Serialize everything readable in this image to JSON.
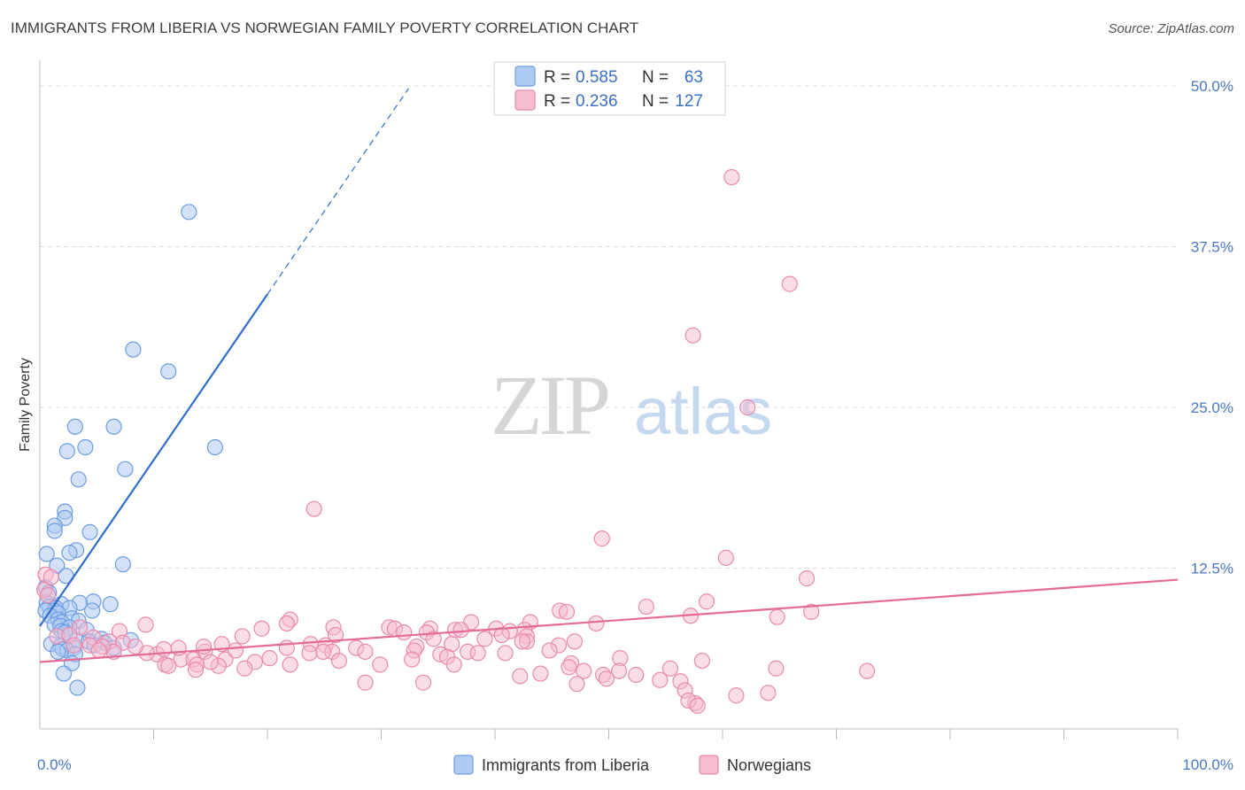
{
  "header": {
    "title": "IMMIGRANTS FROM LIBERIA VS NORWEGIAN FAMILY POVERTY CORRELATION CHART",
    "source": "Source: ZipAtlas.com"
  },
  "watermark": {
    "zip": "ZIP",
    "atlas": "atlas"
  },
  "legend": {
    "rows": [
      {
        "r_label": "R =",
        "r_value": "0.585",
        "n_label": "N =",
        "n_value": "63"
      },
      {
        "r_label": "R =",
        "r_value": "0.236",
        "n_label": "N =",
        "n_value": "127"
      }
    ]
  },
  "colors": {
    "blue_fill": "#aecbf2",
    "blue_stroke": "#6d9de0",
    "blue_line": "#2f6fc9",
    "pink_fill": "#f6bcd0",
    "pink_stroke": "#e98aae",
    "pink_line": "#e56a98",
    "grid": "#dddddd",
    "axis": "#bbbbbb"
  },
  "chart_data": {
    "type": "scatter",
    "title": "IMMIGRANTS FROM LIBERIA VS NORWEGIAN FAMILY POVERTY CORRELATION CHART",
    "xlabel": "",
    "ylabel": "Family Poverty",
    "xlim": [
      0,
      100
    ],
    "ylim": [
      0,
      52
    ],
    "x_tick_labels": [
      "0.0%",
      "100.0%"
    ],
    "y_ticks": [
      12.5,
      25.0,
      37.5,
      50.0
    ],
    "y_tick_labels": [
      "12.5%",
      "25.0%",
      "37.5%",
      "50.0%"
    ],
    "grid": true,
    "legend_position": "bottom",
    "series": [
      {
        "name": "Immigrants from Liberia",
        "r": 0.585,
        "n": 63,
        "trend": {
          "x_start": 0,
          "y_start": 8.0,
          "x_solid_end": 20,
          "x_dash_end": 32.4
        },
        "points": [
          [
            13.1,
            40.2
          ],
          [
            8.2,
            29.5
          ],
          [
            11.3,
            27.8
          ],
          [
            3.1,
            23.5
          ],
          [
            6.5,
            23.5
          ],
          [
            15.4,
            21.9
          ],
          [
            4.0,
            21.9
          ],
          [
            2.4,
            21.6
          ],
          [
            7.5,
            20.2
          ],
          [
            3.4,
            19.4
          ],
          [
            2.2,
            16.9
          ],
          [
            2.2,
            16.4
          ],
          [
            1.3,
            15.8
          ],
          [
            1.3,
            15.4
          ],
          [
            4.4,
            15.3
          ],
          [
            3.2,
            13.9
          ],
          [
            2.6,
            13.7
          ],
          [
            0.6,
            13.6
          ],
          [
            7.3,
            12.8
          ],
          [
            1.5,
            12.7
          ],
          [
            2.3,
            11.9
          ],
          [
            0.5,
            11.0
          ],
          [
            0.8,
            10.6
          ],
          [
            4.7,
            9.9
          ],
          [
            0.6,
            9.8
          ],
          [
            3.5,
            9.8
          ],
          [
            1.9,
            9.7
          ],
          [
            6.2,
            9.7
          ],
          [
            0.8,
            9.5
          ],
          [
            1.4,
            9.4
          ],
          [
            2.6,
            9.4
          ],
          [
            1.3,
            9.2
          ],
          [
            0.5,
            9.2
          ],
          [
            4.6,
            9.2
          ],
          [
            1.6,
            9.0
          ],
          [
            0.9,
            8.8
          ],
          [
            2.8,
            8.6
          ],
          [
            1.6,
            8.5
          ],
          [
            3.4,
            8.4
          ],
          [
            1.9,
            8.3
          ],
          [
            1.3,
            8.1
          ],
          [
            1.8,
            8.0
          ],
          [
            2.6,
            7.9
          ],
          [
            4.1,
            7.7
          ],
          [
            1.9,
            7.6
          ],
          [
            2.2,
            7.5
          ],
          [
            5.4,
            7.0
          ],
          [
            3.2,
            6.9
          ],
          [
            8.0,
            6.9
          ],
          [
            4.3,
            6.8
          ],
          [
            5.7,
            6.7
          ],
          [
            1.0,
            6.6
          ],
          [
            4.8,
            6.5
          ],
          [
            1.8,
            6.4
          ],
          [
            2.0,
            6.2
          ],
          [
            6.5,
            6.3
          ],
          [
            3.0,
            6.3
          ],
          [
            2.4,
            6.1
          ],
          [
            3.1,
            5.8
          ],
          [
            2.8,
            5.1
          ],
          [
            2.1,
            4.3
          ],
          [
            3.3,
            3.2
          ],
          [
            1.6,
            6.0
          ]
        ]
      },
      {
        "name": "Norwegians",
        "r": 0.236,
        "n": 127,
        "trend": {
          "x_start": 0,
          "y_start": 5.2,
          "x_end": 100,
          "y_end": 11.6
        },
        "points": [
          [
            60.8,
            42.9
          ],
          [
            65.9,
            34.6
          ],
          [
            57.4,
            30.6
          ],
          [
            62.2,
            25.0
          ],
          [
            24.1,
            17.1
          ],
          [
            49.4,
            14.8
          ],
          [
            60.3,
            13.3
          ],
          [
            0.5,
            12.0
          ],
          [
            1.0,
            11.8
          ],
          [
            67.4,
            11.7
          ],
          [
            0.4,
            10.8
          ],
          [
            0.7,
            10.4
          ],
          [
            58.6,
            9.9
          ],
          [
            53.3,
            9.5
          ],
          [
            45.7,
            9.2
          ],
          [
            46.3,
            9.1
          ],
          [
            67.8,
            9.1
          ],
          [
            57.2,
            8.8
          ],
          [
            64.8,
            8.7
          ],
          [
            22.0,
            8.5
          ],
          [
            21.7,
            8.2
          ],
          [
            43.1,
            8.3
          ],
          [
            37.9,
            8.3
          ],
          [
            48.9,
            8.2
          ],
          [
            9.3,
            8.1
          ],
          [
            25.8,
            7.9
          ],
          [
            30.7,
            7.9
          ],
          [
            34.3,
            7.8
          ],
          [
            31.2,
            7.8
          ],
          [
            19.5,
            7.8
          ],
          [
            40.1,
            7.8
          ],
          [
            42.6,
            7.7
          ],
          [
            36.5,
            7.7
          ],
          [
            37.0,
            7.7
          ],
          [
            41.3,
            7.6
          ],
          [
            7.0,
            7.6
          ],
          [
            34.0,
            7.5
          ],
          [
            32.0,
            7.5
          ],
          [
            40.6,
            7.3
          ],
          [
            42.8,
            7.2
          ],
          [
            26.0,
            7.3
          ],
          [
            39.1,
            7.0
          ],
          [
            1.5,
            7.2
          ],
          [
            17.8,
            7.2
          ],
          [
            34.6,
            7.0
          ],
          [
            42.8,
            6.8
          ],
          [
            42.4,
            6.8
          ],
          [
            36.2,
            6.6
          ],
          [
            47.0,
            6.8
          ],
          [
            45.6,
            6.5
          ],
          [
            25.1,
            6.5
          ],
          [
            33.1,
            6.4
          ],
          [
            27.8,
            6.3
          ],
          [
            32.9,
            6.1
          ],
          [
            14.5,
            6.0
          ],
          [
            37.6,
            6.0
          ],
          [
            28.6,
            6.0
          ],
          [
            44.8,
            6.1
          ],
          [
            25.7,
            6.0
          ],
          [
            24.9,
            6.0
          ],
          [
            38.5,
            5.9
          ],
          [
            40.9,
            5.9
          ],
          [
            35.2,
            5.8
          ],
          [
            10.3,
            5.8
          ],
          [
            35.8,
            5.6
          ],
          [
            51.0,
            5.5
          ],
          [
            32.7,
            5.4
          ],
          [
            12.4,
            5.4
          ],
          [
            13.5,
            5.4
          ],
          [
            46.7,
            5.1
          ],
          [
            18.9,
            5.2
          ],
          [
            58.2,
            5.3
          ],
          [
            13.8,
            5.0
          ],
          [
            46.5,
            4.8
          ],
          [
            64.7,
            4.7
          ],
          [
            55.4,
            4.7
          ],
          [
            50.9,
            4.5
          ],
          [
            47.8,
            4.5
          ],
          [
            44.0,
            4.3
          ],
          [
            49.5,
            4.2
          ],
          [
            42.2,
            4.1
          ],
          [
            52.4,
            4.2
          ],
          [
            49.8,
            3.9
          ],
          [
            54.5,
            3.8
          ],
          [
            47.2,
            3.5
          ],
          [
            72.7,
            4.5
          ],
          [
            56.3,
            3.7
          ],
          [
            28.6,
            3.6
          ],
          [
            56.7,
            3.0
          ],
          [
            61.2,
            2.6
          ],
          [
            64.0,
            2.8
          ],
          [
            57.6,
            2.0
          ],
          [
            57.0,
            2.2
          ],
          [
            57.8,
            1.8
          ],
          [
            33.7,
            3.6
          ],
          [
            11.0,
            5.0
          ],
          [
            16.3,
            5.4
          ],
          [
            17.2,
            6.1
          ],
          [
            9.4,
            5.9
          ],
          [
            6.1,
            6.8
          ],
          [
            7.3,
            6.7
          ],
          [
            6.5,
            6.0
          ],
          [
            15.7,
            4.9
          ],
          [
            13.7,
            4.6
          ],
          [
            18.0,
            4.7
          ],
          [
            22.0,
            5.0
          ],
          [
            29.9,
            5.0
          ],
          [
            21.7,
            6.3
          ],
          [
            16.0,
            6.6
          ],
          [
            8.4,
            6.4
          ],
          [
            12.2,
            6.3
          ],
          [
            10.9,
            6.2
          ],
          [
            14.4,
            6.4
          ],
          [
            4.7,
            7.1
          ],
          [
            23.8,
            6.6
          ],
          [
            3.5,
            7.9
          ],
          [
            2.6,
            7.3
          ],
          [
            3.0,
            6.5
          ],
          [
            4.4,
            6.5
          ],
          [
            5.5,
            6.4
          ],
          [
            5.2,
            6.1
          ],
          [
            11.3,
            4.9
          ],
          [
            15.0,
            5.2
          ],
          [
            20.2,
            5.5
          ],
          [
            23.7,
            5.9
          ],
          [
            26.3,
            5.3
          ],
          [
            36.4,
            5.0
          ]
        ]
      }
    ]
  }
}
